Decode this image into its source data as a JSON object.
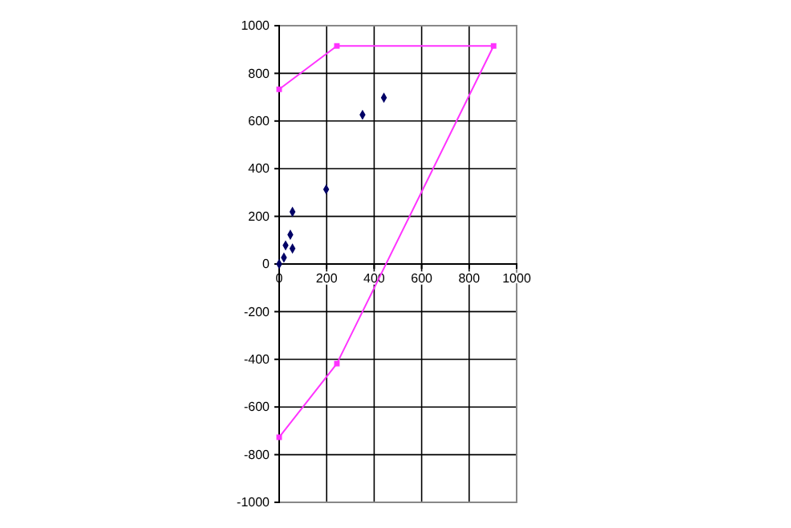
{
  "chart_data": {
    "type": "scatter",
    "xlim": [
      0,
      1000
    ],
    "xticks": [
      0,
      200,
      400,
      600,
      800,
      1000
    ],
    "ylim": [
      -1000,
      1000
    ],
    "yticks": [
      -1000,
      -800,
      -600,
      -400,
      -200,
      0,
      200,
      400,
      600,
      800,
      1000
    ],
    "grid": true,
    "series": [
      {
        "color": "#000066",
        "marker": "diamond",
        "x": [
          0,
          20,
          27,
          47,
          56,
          56,
          198,
          351,
          441
        ],
        "values": [
          0,
          27,
          78,
          123,
          65,
          219,
          313,
          626,
          698
        ]
      },
      {
        "type": "line",
        "color": "#ff33ff",
        "marker": "square",
        "x": [
          0,
          243,
          903,
          243,
          0
        ],
        "values": [
          733,
          915,
          915,
          -418,
          -727
        ]
      }
    ]
  }
}
